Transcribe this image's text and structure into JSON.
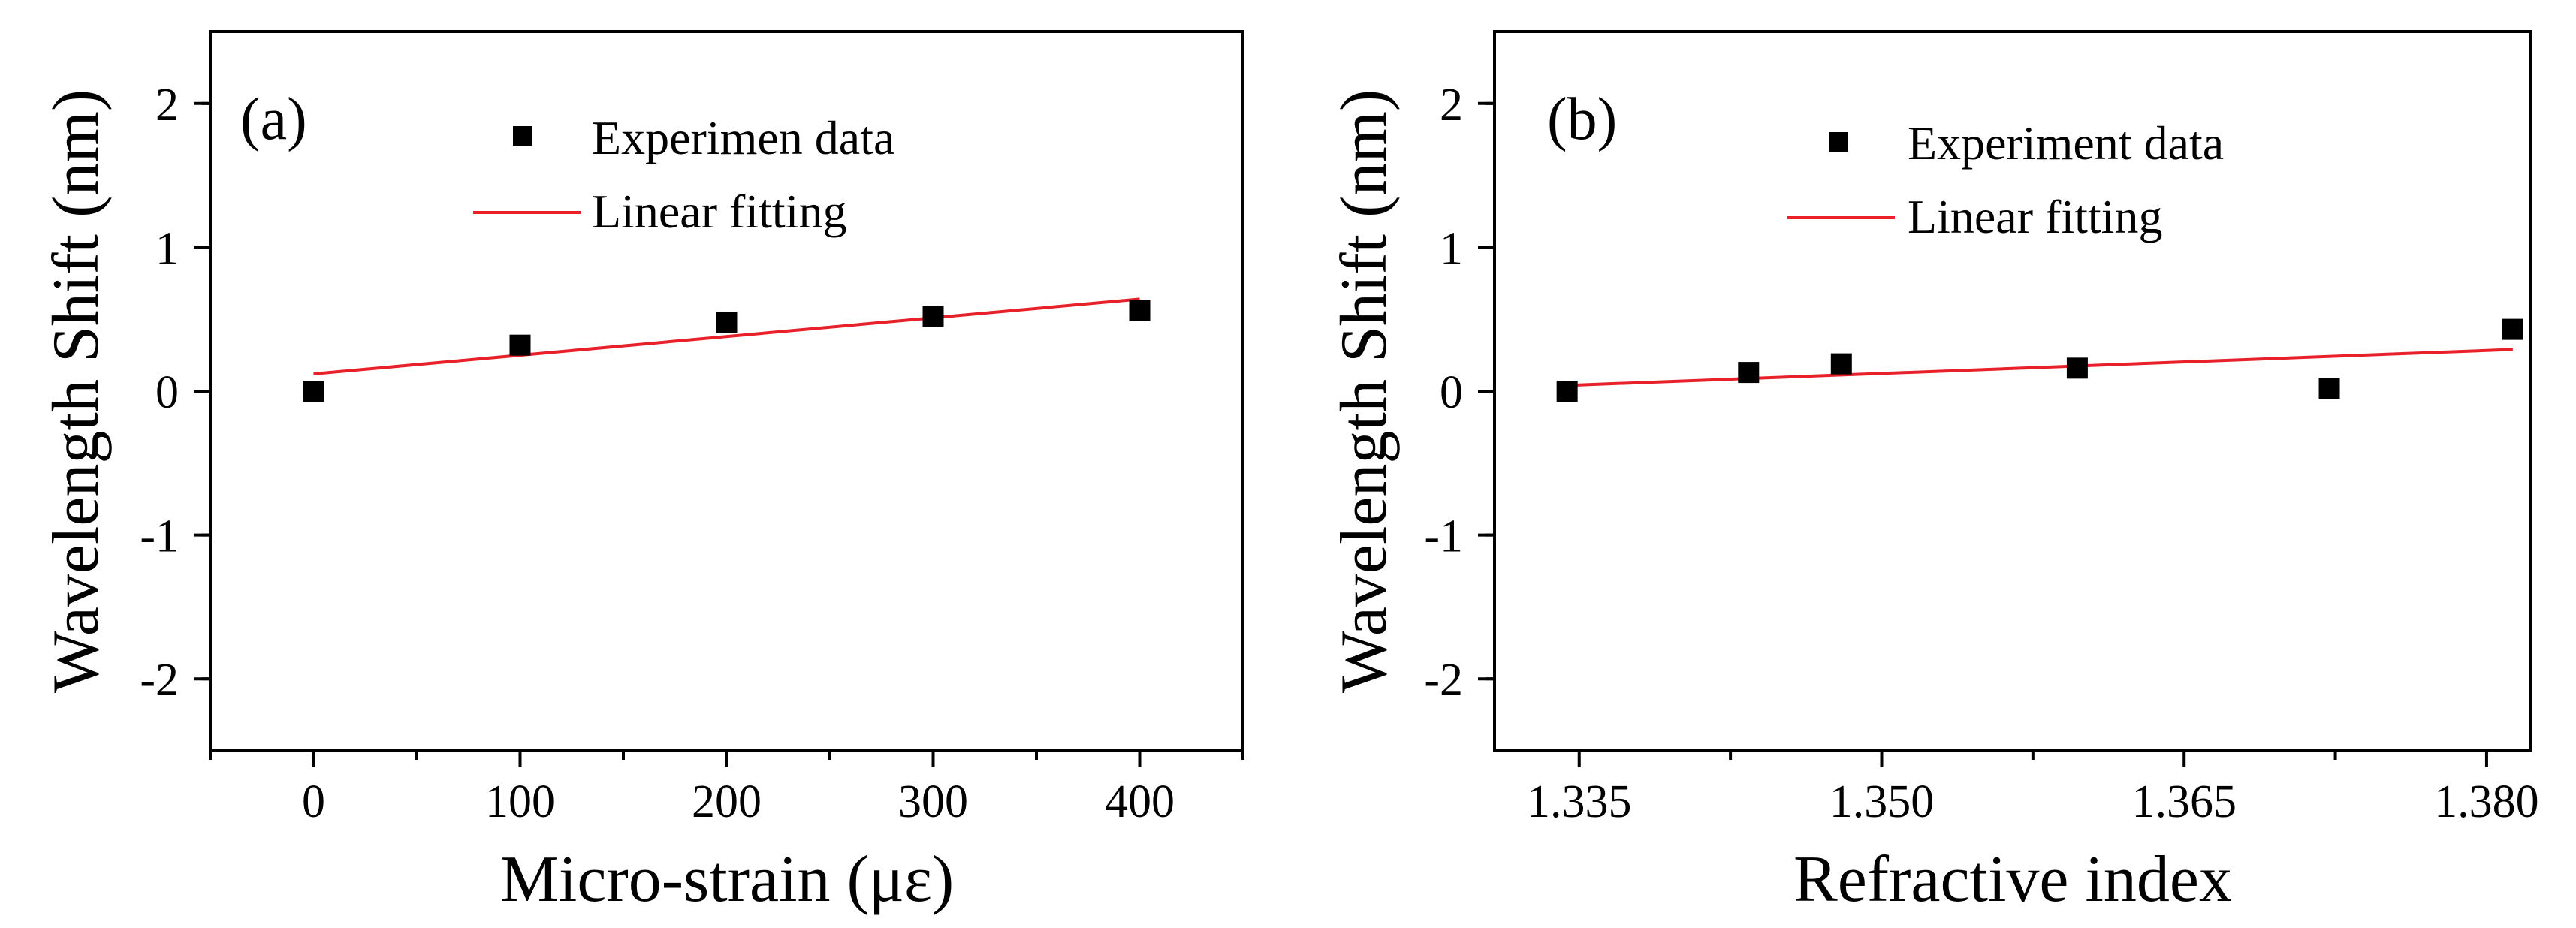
{
  "colors": {
    "background": "#ffffff",
    "axis": "#000000",
    "marker": "#000000",
    "fit_line": "#e8202a"
  },
  "chart_data": [
    {
      "type": "scatter",
      "panel_label": "(a)",
      "title": "",
      "xlabel": "Micro-strain (με)",
      "ylabel": "Wavelength Shift (nm)",
      "xlim": [
        -50,
        450
      ],
      "ylim": [
        -2.5,
        2.5
      ],
      "xticks": [
        0,
        100,
        200,
        300,
        400
      ],
      "xtick_labels": [
        "0",
        "100",
        "200",
        "300",
        "400"
      ],
      "yticks": [
        -2,
        -1,
        0,
        1,
        2
      ],
      "ytick_labels": [
        "-2",
        "-1",
        "0",
        "1",
        "2"
      ],
      "grid": false,
      "legend_position": "top",
      "series": [
        {
          "name": "Experimen data",
          "kind": "markers",
          "marker": "square",
          "x": [
            0,
            100,
            200,
            300,
            400
          ],
          "y": [
            0.0,
            0.32,
            0.48,
            0.52,
            0.56
          ]
        },
        {
          "name": "Linear fitting",
          "kind": "line",
          "x": [
            0,
            400
          ],
          "y": [
            0.12,
            0.64
          ]
        }
      ]
    },
    {
      "type": "scatter",
      "panel_label": "(b)",
      "title": "",
      "xlabel": "Refractive index",
      "ylabel": "Wavelength Shift (nm)",
      "xlim": [
        1.3308,
        1.3822
      ],
      "ylim": [
        -2.5,
        2.5
      ],
      "xticks": [
        1.335,
        1.35,
        1.365,
        1.38
      ],
      "xtick_labels": [
        "1.335",
        "1.350",
        "1.365",
        "1.380"
      ],
      "yticks": [
        -2,
        -1,
        0,
        1,
        2
      ],
      "ytick_labels": [
        "-2",
        "-1",
        "0",
        "1",
        "2"
      ],
      "grid": false,
      "legend_position": "top",
      "series": [
        {
          "name": "Experiment data",
          "kind": "markers",
          "marker": "square",
          "x": [
            1.3344,
            1.3434,
            1.348,
            1.3597,
            1.3722,
            1.3813
          ],
          "y": [
            0.0,
            0.13,
            0.19,
            0.16,
            0.02,
            0.43
          ]
        },
        {
          "name": "Linear fitting",
          "kind": "line",
          "x": [
            1.3344,
            1.3813
          ],
          "y": [
            0.04,
            0.29
          ]
        }
      ]
    }
  ]
}
